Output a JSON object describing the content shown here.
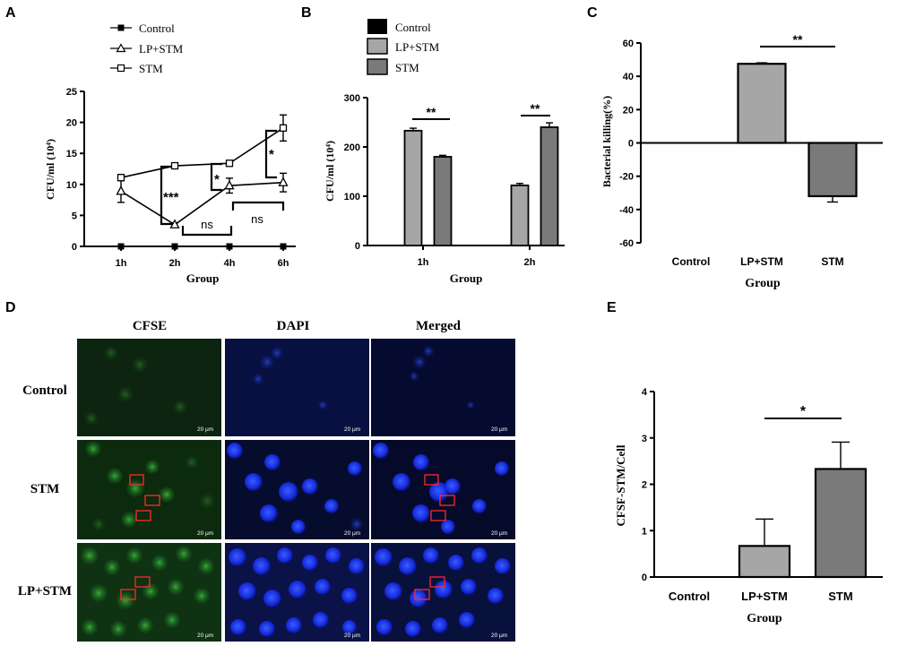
{
  "panel_labels": [
    "A",
    "B",
    "C",
    "D",
    "E"
  ],
  "chart_data": [
    {
      "id": "A",
      "type": "line",
      "xlabel": "Group",
      "ylabel": "CFU/ml (10⁴)",
      "categories": [
        "1h",
        "2h",
        "4h",
        "6h"
      ],
      "ylim": [
        0,
        25
      ],
      "yticks": [
        "0",
        "5",
        "10",
        "15",
        "20",
        "25"
      ],
      "grid": false,
      "legend_position": "top-left",
      "series": [
        {
          "name": "Control",
          "marker": "filled-square",
          "values": [
            0,
            0,
            0,
            0
          ],
          "errors": [
            0,
            0,
            0,
            0
          ]
        },
        {
          "name": "LP+STM",
          "marker": "open-triangle",
          "values": [
            8.9,
            3.5,
            9.8,
            10.3
          ],
          "errors": [
            1.8,
            0.3,
            1.2,
            1.5
          ]
        },
        {
          "name": "STM",
          "marker": "open-square",
          "values": [
            11.1,
            13,
            13.4,
            19.1
          ],
          "errors": [
            0.5,
            0.3,
            0.3,
            2.1
          ]
        }
      ],
      "annotations": [
        "***",
        "*",
        "*",
        "ns",
        "ns"
      ]
    },
    {
      "id": "B",
      "type": "bar",
      "xlabel": "Group",
      "ylabel": "CFU/ml  (10⁴)",
      "categories": [
        "1h",
        "2h"
      ],
      "ylim": [
        0,
        300
      ],
      "yticks": [
        "0",
        "100",
        "200",
        "300"
      ],
      "grid": false,
      "legend_position": "top-left",
      "legend": [
        "Control",
        "LP+STM",
        "STM"
      ],
      "colors": {
        "Control": "#000000",
        "LP+STM": "#a6a6a6",
        "STM": "#7a7a7a"
      },
      "series": [
        {
          "name": "LP+STM",
          "values": [
            233,
            122
          ],
          "errors": [
            5,
            4
          ]
        },
        {
          "name": "STM",
          "values": [
            180,
            240
          ],
          "errors": [
            3,
            9
          ]
        }
      ],
      "annotations": [
        "**",
        "**"
      ]
    },
    {
      "id": "C",
      "type": "bar",
      "xlabel": "Group",
      "ylabel": "Bacterial killing(%)",
      "categories": [
        "Control",
        "LP+STM",
        "STM"
      ],
      "values": [
        0,
        47.5,
        -32
      ],
      "errors": [
        0,
        0.6,
        3.5
      ],
      "colors": [
        "#000000",
        "#a6a6a6",
        "#7a7a7a"
      ],
      "ylim": [
        -60,
        60
      ],
      "yticks": [
        "-60",
        "-40",
        "-20",
        "0",
        "20",
        "40",
        "60"
      ],
      "grid": false,
      "annotations": [
        "**"
      ]
    },
    {
      "id": "E",
      "type": "bar",
      "xlabel": "Group",
      "ylabel": "CFSF-STM/Cell",
      "categories": [
        "Control",
        "LP+STM",
        "STM"
      ],
      "values": [
        0,
        0.67,
        2.33
      ],
      "errors": [
        0,
        0.58,
        0.58
      ],
      "colors": [
        "#000000",
        "#a6a6a6",
        "#7a7a7a"
      ],
      "ylim": [
        0,
        4
      ],
      "yticks": [
        "0",
        "1",
        "2",
        "3",
        "4"
      ],
      "grid": false,
      "annotations": [
        "*"
      ]
    }
  ],
  "microscopy": {
    "column_headers": [
      "CFSE",
      "DAPI",
      "Merged"
    ],
    "row_labels": [
      "Control",
      "STM",
      "LP+STM"
    ],
    "scale_bar_label": "20 μm",
    "colors": {
      "cfse": "#3fa03a",
      "dapi": "#1f3cff",
      "highlight_box": "#ff2a2a"
    }
  }
}
